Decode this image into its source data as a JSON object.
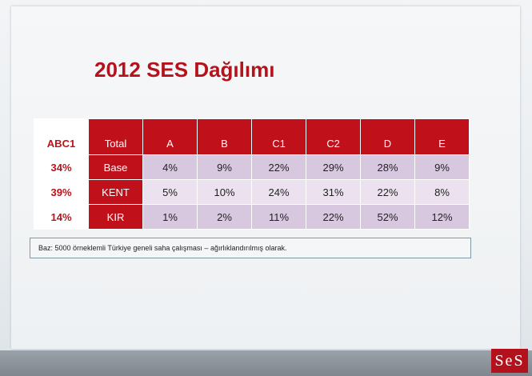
{
  "title": "2012 SES Dağılımı",
  "table": {
    "header": [
      "ABC1",
      "Total",
      "A",
      "B",
      "C1",
      "C2",
      "D",
      "E"
    ],
    "rows": [
      [
        "34%",
        "Base",
        "4%",
        "9%",
        "22%",
        "29%",
        "28%",
        "9%"
      ],
      [
        "39%",
        "KENT",
        "5%",
        "10%",
        "24%",
        "31%",
        "22%",
        "8%"
      ],
      [
        "14%",
        "KIR",
        "1%",
        "2%",
        "11%",
        "22%",
        "52%",
        "12%"
      ]
    ]
  },
  "note": "Baz: 5000 örneklemli Türkiye geneli saha çalışması – ağırlıklandırılmış olarak.",
  "logo": "SeS"
}
